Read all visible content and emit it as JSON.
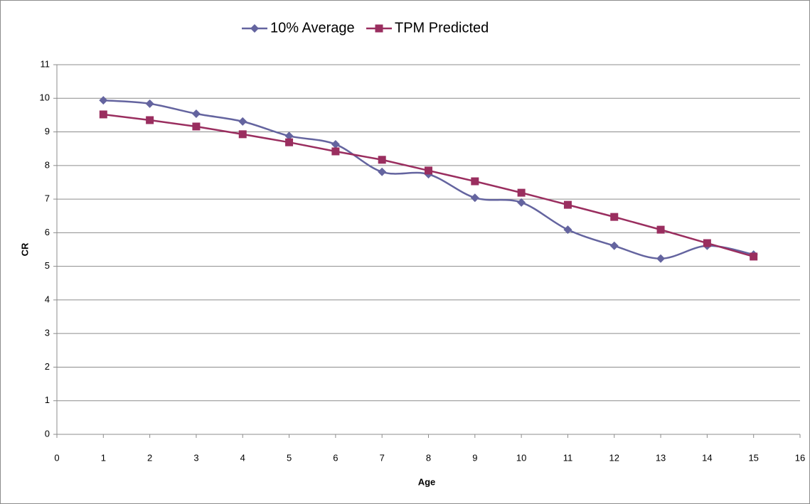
{
  "chart_data": {
    "type": "line",
    "x": [
      1,
      2,
      3,
      4,
      5,
      6,
      7,
      8,
      9,
      10,
      11,
      12,
      13,
      14,
      15
    ],
    "series": [
      {
        "name": "10% Average",
        "color": "#64649f",
        "marker": "diamond",
        "smooth": true,
        "values": [
          9.94,
          9.84,
          9.54,
          9.31,
          8.88,
          8.63,
          7.81,
          7.74,
          7.04,
          6.9,
          6.09,
          5.61,
          5.23,
          5.61,
          5.35
        ]
      },
      {
        "name": "TPM Predicted",
        "color": "#9a2e5f",
        "marker": "square",
        "smooth": false,
        "values": [
          9.52,
          9.35,
          9.16,
          8.93,
          8.69,
          8.42,
          8.17,
          7.85,
          7.53,
          7.19,
          6.83,
          6.47,
          6.09,
          5.69,
          5.29
        ]
      }
    ],
    "xlabel": "Age",
    "ylabel": "CR",
    "xlim": [
      0,
      16
    ],
    "xticks": [
      0,
      1,
      2,
      3,
      4,
      5,
      6,
      7,
      8,
      9,
      10,
      11,
      12,
      13,
      14,
      15,
      16
    ],
    "ylim": [
      0,
      11
    ],
    "yticks": [
      0,
      1,
      2,
      3,
      4,
      5,
      6,
      7,
      8,
      9,
      10,
      11
    ],
    "grid": true,
    "legend": "top"
  }
}
